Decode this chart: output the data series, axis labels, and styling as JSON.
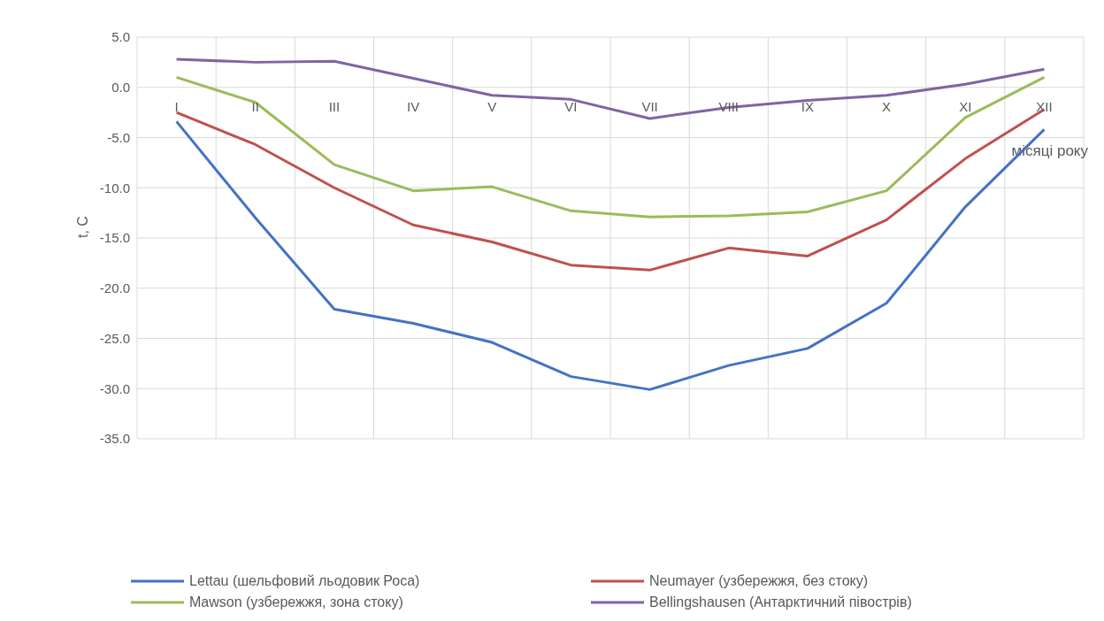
{
  "chart_data": {
    "type": "line",
    "xlabel": "місяці року",
    "ylabel": "t, C",
    "categories": [
      "I",
      "II",
      "III",
      "IV",
      "V",
      "VI",
      "VII",
      "VIII",
      "IX",
      "X",
      "XI",
      "XII"
    ],
    "series": [
      {
        "name": "Lettau (шельфовий льодовик Роса)",
        "color": "#4472c4",
        "values": [
          -3.4,
          -13.0,
          -22.1,
          -23.5,
          -25.4,
          -28.8,
          -30.1,
          -27.7,
          -26.0,
          -21.5,
          -11.9,
          -4.2
        ]
      },
      {
        "name": "Neumayer (узбережжя, без стоку)",
        "color": "#c0504d",
        "values": [
          -2.5,
          -5.7,
          -10.0,
          -13.7,
          -15.4,
          -17.7,
          -18.2,
          -16.0,
          -16.8,
          -13.2,
          -7.1,
          -2.2
        ]
      },
      {
        "name": "Mawson (узбережжя, зона стоку)",
        "color": "#9bbb59",
        "values": [
          1.0,
          -1.5,
          -7.7,
          -10.3,
          -9.9,
          -12.3,
          -12.9,
          -12.8,
          -12.4,
          -10.3,
          -3.0,
          1.0
        ]
      },
      {
        "name": "Bellingshausen (Антарктичний півострів)",
        "color": "#8064a2",
        "values": [
          2.8,
          2.5,
          2.6,
          0.9,
          -0.8,
          -1.2,
          -3.1,
          -2.0,
          -1.3,
          -0.8,
          0.3,
          1.8
        ]
      }
    ],
    "ylim": [
      -35,
      5
    ],
    "yticks": [
      {
        "value": -35,
        "label": "-35.0"
      },
      {
        "value": -30,
        "label": "-30.0"
      },
      {
        "value": -25,
        "label": "-25.0"
      },
      {
        "value": -20,
        "label": "-20.0"
      },
      {
        "value": -15,
        "label": "-15.0"
      },
      {
        "value": -10,
        "label": "-10.0"
      },
      {
        "value": -5,
        "label": "-5.0"
      },
      {
        "value": 0,
        "label": "0.0"
      },
      {
        "value": 5,
        "label": "5.0"
      }
    ],
    "grid": true,
    "legend": "bottom",
    "marker": "none",
    "line_style": "solid"
  }
}
